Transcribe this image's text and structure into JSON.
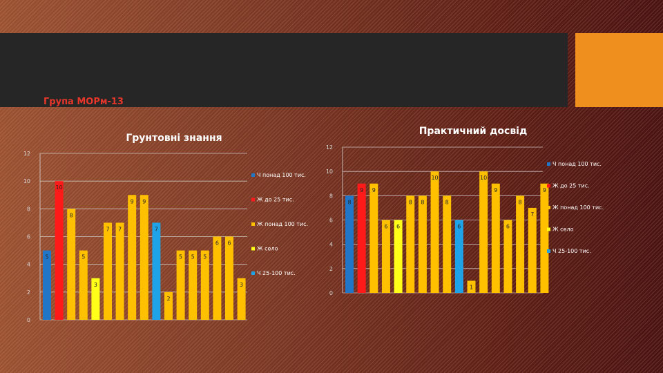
{
  "slide": {
    "group_title": "Група МОРм-13"
  },
  "chart_data": [
    {
      "type": "bar",
      "title": "Грунтовні знання",
      "ylim": [
        0,
        12
      ],
      "yticks": [
        0,
        2,
        4,
        6,
        8,
        10,
        12
      ],
      "grid": true,
      "legend_position": "right",
      "legend": [
        {
          "name": "Ч понад 100 тис.",
          "color": "#2176c7"
        },
        {
          "name": "Ж до 25 тис.",
          "color": "#ff1a1a"
        },
        {
          "name": "Ж понад 100 тис.",
          "color": "#ffc000"
        },
        {
          "name": "Ж село",
          "color": "#ffff1a"
        },
        {
          "name": "Ч 25-100 тис.",
          "color": "#1fa3e8"
        }
      ],
      "bars": [
        {
          "value": 5,
          "series": 0
        },
        {
          "value": 10,
          "series": 1
        },
        {
          "value": 8,
          "series": 2
        },
        {
          "value": 5,
          "series": 2
        },
        {
          "value": 3,
          "series": 3
        },
        {
          "value": 7,
          "series": 2
        },
        {
          "value": 7,
          "series": 2
        },
        {
          "value": 9,
          "series": 2
        },
        {
          "value": 9,
          "series": 2
        },
        {
          "value": 7,
          "series": 4
        },
        {
          "value": 2,
          "series": 2
        },
        {
          "value": 5,
          "series": 2
        },
        {
          "value": 5,
          "series": 2
        },
        {
          "value": 5,
          "series": 2
        },
        {
          "value": 6,
          "series": 2
        },
        {
          "value": 6,
          "series": 2
        },
        {
          "value": 3,
          "series": 2
        }
      ]
    },
    {
      "type": "bar",
      "title": "Практичний досвід",
      "ylim": [
        0,
        12
      ],
      "yticks": [
        0,
        2,
        4,
        6,
        8,
        10,
        12
      ],
      "grid": true,
      "legend_position": "right",
      "legend": [
        {
          "name": "Ч понад 100 тис.",
          "color": "#2176c7"
        },
        {
          "name": "Ж до 25 тис.",
          "color": "#ff1a1a"
        },
        {
          "name": "Ж понад 100 тис.",
          "color": "#ffc000"
        },
        {
          "name": "Ж село",
          "color": "#ffff1a"
        },
        {
          "name": "Ч 25-100 тис.",
          "color": "#1fa3e8"
        }
      ],
      "bars": [
        {
          "value": 8,
          "series": 0
        },
        {
          "value": 9,
          "series": 1
        },
        {
          "value": 9,
          "series": 2
        },
        {
          "value": 6,
          "series": 2
        },
        {
          "value": 6,
          "series": 3
        },
        {
          "value": 8,
          "series": 2
        },
        {
          "value": 8,
          "series": 2
        },
        {
          "value": 10,
          "series": 2
        },
        {
          "value": 8,
          "series": 2
        },
        {
          "value": 6,
          "series": 4
        },
        {
          "value": 1,
          "series": 2
        },
        {
          "value": 10,
          "series": 2
        },
        {
          "value": 9,
          "series": 2
        },
        {
          "value": 6,
          "series": 2
        },
        {
          "value": 8,
          "series": 2
        },
        {
          "value": 7,
          "series": 2
        },
        {
          "value": 9,
          "series": 2
        }
      ]
    }
  ]
}
